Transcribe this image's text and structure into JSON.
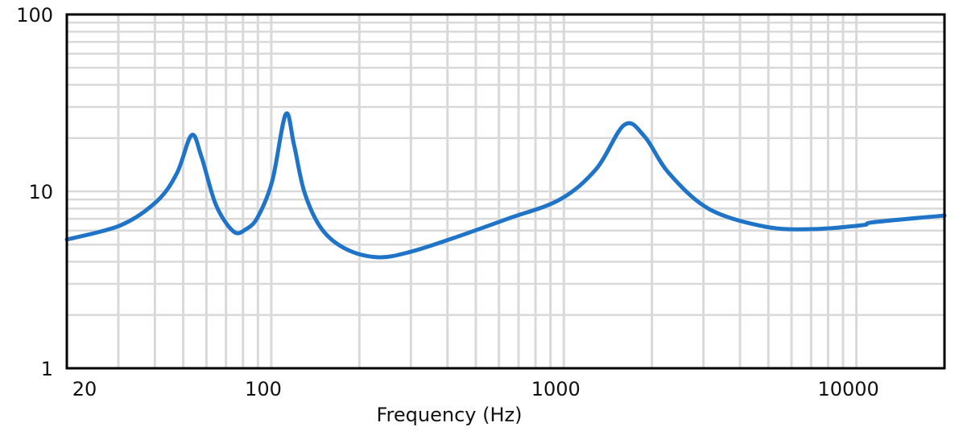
{
  "chart_data": {
    "type": "line",
    "title": "",
    "xlabel": "Frequency (Hz)",
    "ylabel": "",
    "x_scale": "log",
    "y_scale": "log",
    "xlim": [
      20,
      20000
    ],
    "ylim": [
      1,
      100
    ],
    "grid": true,
    "x_ticks": [
      {
        "value": 20,
        "label": "20"
      },
      {
        "value": 100,
        "label": "100"
      },
      {
        "value": 1000,
        "label": "1000"
      },
      {
        "value": 10000,
        "label": "10000"
      }
    ],
    "y_ticks": [
      {
        "value": 1,
        "label": "1"
      },
      {
        "value": 10,
        "label": "10"
      },
      {
        "value": 100,
        "label": "100"
      }
    ],
    "series": [
      {
        "color": "#1f74c8",
        "x": [
          20,
          30.6,
          40.7,
          47.6,
          53.4,
          57.7,
          64.7,
          74.3,
          81.8,
          89.9,
          100.8,
          112,
          119.6,
          130,
          149,
          181,
          233,
          300,
          412,
          643,
          970,
          1291,
          1611,
          1889,
          2284,
          3139,
          4890,
          7160,
          10480,
          11500,
          20000
        ],
        "y": [
          5.34,
          6.44,
          8.82,
          12.7,
          20.8,
          15.7,
          8.37,
          5.93,
          6.1,
          7.16,
          11.5,
          27.3,
          18.3,
          9.8,
          6.1,
          4.7,
          4.24,
          4.56,
          5.39,
          7.0,
          9.0,
          13.4,
          23.8,
          20.4,
          12.7,
          7.94,
          6.31,
          6.12,
          6.44,
          6.7,
          7.3
        ]
      }
    ]
  }
}
